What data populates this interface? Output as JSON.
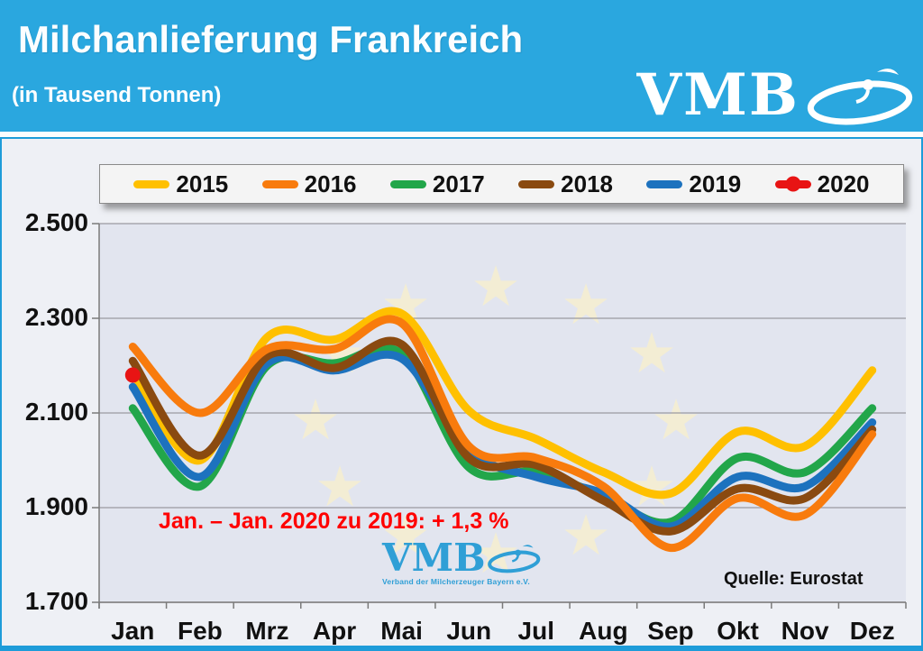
{
  "header": {
    "title": "Milchanlieferung Frankreich",
    "subtitle": "(in Tausend Tonnen)",
    "logo_text": "VMB",
    "accent_color": "#2AA7DF"
  },
  "chart_data": {
    "type": "line",
    "title": "Milchanlieferung Frankreich",
    "subtitle": "(in Tausend Tonnen)",
    "unit": "Tausend Tonnen",
    "categories": [
      "Jan",
      "Feb",
      "Mrz",
      "Apr",
      "Mai",
      "Jun",
      "Jul",
      "Aug",
      "Sep",
      "Okt",
      "Nov",
      "Dez"
    ],
    "y_tick_labels": [
      "2.500",
      "2.300",
      "2.100",
      "1.900",
      "1.700"
    ],
    "ylim": [
      1700,
      2500
    ],
    "grid": "horizontal",
    "legend_position": "top",
    "series": [
      {
        "name": "2015",
        "color": "#FFC000",
        "values": [
          2185,
          2000,
          2260,
          2255,
          2310,
          2105,
          2045,
          1975,
          1930,
          2060,
          2030,
          2190
        ]
      },
      {
        "name": "2016",
        "color": "#F87B0D",
        "values": [
          2240,
          2100,
          2235,
          2235,
          2290,
          2030,
          2005,
          1945,
          1815,
          1920,
          1885,
          2055
        ]
      },
      {
        "name": "2017",
        "color": "#22A64A",
        "values": [
          2110,
          1945,
          2200,
          2205,
          2225,
          1985,
          1975,
          1925,
          1870,
          2005,
          1975,
          2110
        ]
      },
      {
        "name": "2018",
        "color": "#8A4A10",
        "values": [
          2210,
          2010,
          2220,
          2195,
          2245,
          2005,
          1990,
          1915,
          1850,
          1940,
          1920,
          2065
        ]
      },
      {
        "name": "2019",
        "color": "#1D72BE",
        "values": [
          2155,
          1965,
          2205,
          2190,
          2215,
          2020,
          1965,
          1930,
          1860,
          1965,
          1945,
          2080
        ]
      },
      {
        "name": "2020",
        "color": "#E81414",
        "marker": "dot",
        "values": [
          2180
        ]
      }
    ],
    "annotation": "Jan. – Jan. 2020 zu 2019:  + 1,3 %",
    "annotation_color": "#FF0000",
    "source": "Quelle: Eurostat"
  },
  "watermark": {
    "logo_text": "VMB",
    "caption": "Verband der Milcherzeuger Bayern e.V."
  }
}
